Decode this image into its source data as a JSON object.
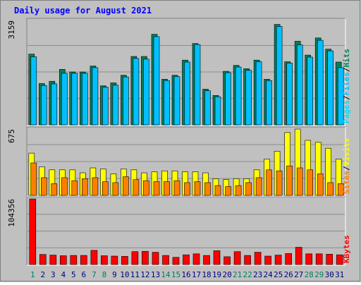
{
  "title": "Daily usage for August 2021",
  "colors": {
    "background": "#C0C0C0",
    "title": "#0000FF",
    "hits": "#00805C",
    "files": "#00C0FF",
    "pages": "#00E0FF",
    "visits": "#FFFF00",
    "sites": "#FF8000",
    "kbytes": "#FF0000",
    "weekend_label": "#00805C",
    "weekday_label": "#000080"
  },
  "chart_data": [
    {
      "type": "bar",
      "name": "hits-files-pages",
      "y_max_label": "3159",
      "ylim": [
        0,
        3159
      ],
      "legend": [
        "Pages",
        "Files",
        "Hits"
      ],
      "series": [
        {
          "name": "Hits",
          "values": [
            2140,
            1250,
            1320,
            1680,
            1600,
            1600,
            1780,
            1180,
            1270,
            1500,
            2070,
            2070,
            2740,
            1380,
            1500,
            1960,
            2460,
            1080,
            890,
            1620,
            1800,
            1700,
            1960,
            1380,
            3040,
            1910,
            2530,
            2110,
            2630,
            2290,
            1900
          ]
        },
        {
          "name": "Files",
          "values": [
            2060,
            1190,
            1240,
            1560,
            1560,
            1560,
            1730,
            1140,
            1200,
            1450,
            2010,
            1990,
            2670,
            1340,
            1460,
            1900,
            2430,
            1030,
            850,
            1580,
            1750,
            1650,
            1910,
            1340,
            2980,
            1870,
            2420,
            2050,
            2560,
            2240,
            1730
          ]
        }
      ]
    },
    {
      "type": "bar",
      "name": "visits-sites",
      "y_max_label": "675",
      "ylim": [
        0,
        675
      ],
      "legend": [
        "Sites",
        "Visits"
      ],
      "series": [
        {
          "name": "Visits",
          "values": [
            430,
            290,
            260,
            260,
            260,
            230,
            280,
            270,
            220,
            270,
            260,
            230,
            240,
            250,
            250,
            240,
            240,
            230,
            170,
            160,
            170,
            170,
            260,
            370,
            450,
            640,
            675,
            560,
            540,
            480,
            370
          ]
        },
        {
          "name": "Sites",
          "values": [
            330,
            180,
            120,
            180,
            150,
            170,
            180,
            140,
            130,
            190,
            160,
            150,
            140,
            140,
            150,
            130,
            140,
            130,
            100,
            90,
            100,
            130,
            180,
            260,
            250,
            300,
            280,
            260,
            220,
            130,
            120
          ]
        }
      ]
    },
    {
      "type": "bar",
      "name": "kbytes",
      "y_max_label": "104356",
      "ylim": [
        0,
        104356
      ],
      "legend": [
        "KBytes"
      ],
      "series": [
        {
          "name": "KBytes",
          "values": [
            104356,
            16000,
            15000,
            14000,
            14500,
            14500,
            22500,
            14000,
            13500,
            13000,
            20500,
            21000,
            19500,
            14500,
            11500,
            15500,
            17000,
            14500,
            22000,
            12500,
            20500,
            14500,
            19500,
            13500,
            15000,
            17500,
            27500,
            17000,
            17000,
            16500,
            15500
          ]
        }
      ]
    }
  ],
  "days": [
    "1",
    "2",
    "3",
    "4",
    "5",
    "6",
    "7",
    "8",
    "9",
    "10",
    "11",
    "12",
    "13",
    "14",
    "15",
    "16",
    "17",
    "18",
    "19",
    "20",
    "21",
    "22",
    "23",
    "24",
    "25",
    "26",
    "27",
    "28",
    "29",
    "30",
    "31"
  ],
  "weekend_days": [
    1,
    7,
    8,
    14,
    15,
    21,
    22,
    28,
    29
  ]
}
